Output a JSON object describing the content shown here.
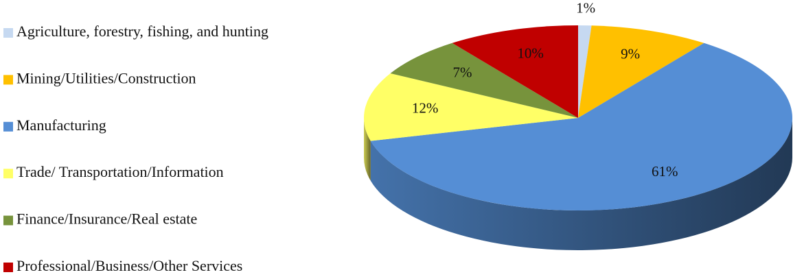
{
  "chart_data": {
    "type": "pie",
    "categories": [
      "Agriculture, forestry, fishing, and hunting",
      "Mining/Utilities/Construction",
      "Manufacturing",
      "Trade/ Transportation/Information",
      "Finance/Insurance/Real estate",
      "Professional/Business/Other Services"
    ],
    "values": [
      1,
      9,
      61,
      12,
      7,
      10
    ],
    "value_labels": [
      "1%",
      "9%",
      "61%",
      "12%",
      "7%",
      "10%"
    ],
    "colors": [
      "#c6d9f1",
      "#ffc000",
      "#558ed5",
      "#ffff66",
      "#77933c",
      "#c00000"
    ],
    "legend": "left"
  }
}
